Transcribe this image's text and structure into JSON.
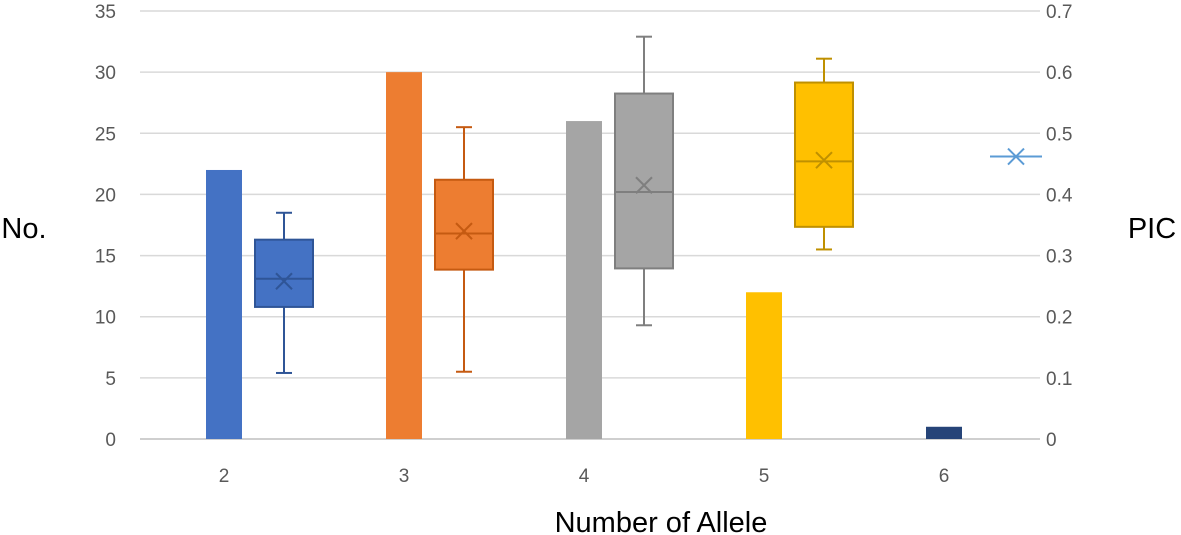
{
  "chart_data": {
    "type": "bar+boxplot",
    "xlabel": "Number of Allele",
    "ylabel_left": "No.",
    "ylabel_right": "PIC",
    "categories": [
      "2",
      "3",
      "4",
      "5",
      "6"
    ],
    "left_axis": {
      "range": [
        0,
        35
      ],
      "ticks": [
        "0",
        "5",
        "10",
        "15",
        "20",
        "25",
        "30",
        "35"
      ]
    },
    "right_axis": {
      "range": [
        0,
        0.7
      ],
      "ticks": [
        "0",
        "0.1",
        "0.2",
        "0.3",
        "0.4",
        "0.5",
        "0.6",
        "0.7"
      ]
    },
    "grid": true,
    "bars": {
      "values": [
        22,
        30,
        26,
        12,
        1
      ],
      "colors": [
        "#4472c4",
        "#ed7d31",
        "#a5a5a5",
        "#ffc000",
        "#264478"
      ]
    },
    "boxplots": [
      {
        "category": "2",
        "min": 0.108,
        "q1": 0.216,
        "median": 0.262,
        "q3": 0.326,
        "max": 0.37,
        "mean": 0.258,
        "color": "#4472c4",
        "stroke": "#2f5597"
      },
      {
        "category": "3",
        "min": 0.11,
        "q1": 0.277,
        "median": 0.336,
        "q3": 0.424,
        "max": 0.51,
        "mean": 0.34,
        "color": "#ed7d31",
        "stroke": "#c55a11"
      },
      {
        "category": "4",
        "min": 0.186,
        "q1": 0.279,
        "median": 0.404,
        "q3": 0.565,
        "max": 0.658,
        "mean": 0.415,
        "color": "#a5a5a5",
        "stroke": "#7f7f7f"
      },
      {
        "category": "5",
        "min": 0.31,
        "q1": 0.347,
        "median": 0.454,
        "q3": 0.583,
        "max": 0.622,
        "mean": 0.456,
        "color": "#ffc000",
        "stroke": "#bf9000"
      },
      {
        "category": "6",
        "mean": 0.462,
        "color": "#5b9bd5",
        "stroke": "#5b9bd5"
      }
    ]
  }
}
